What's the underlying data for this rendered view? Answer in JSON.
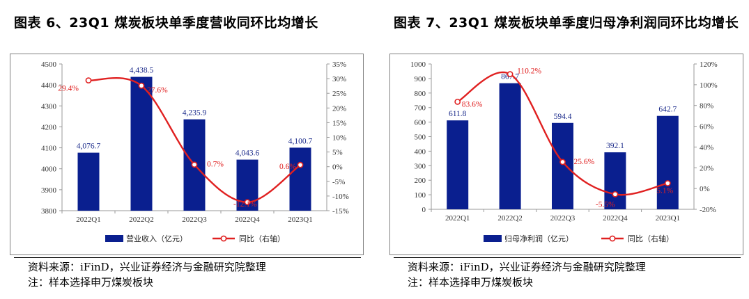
{
  "charts": [
    {
      "title": "图表 6、23Q1 煤炭板块单季度营收同环比均增长",
      "source": "资料来源：iFinD，兴业证券经济与金融研究院整理",
      "note": "注：样本选择申万煤炭板块",
      "legend_bar": "营业收入（亿元）",
      "legend_line": "同比（右轴）"
    },
    {
      "title": "图表 7、23Q1 煤炭板块单季度归母净利润同环比均增长",
      "source": "资料来源：iFinD，兴业证券经济与金融研究院整理",
      "note": "注：样本选择申万煤炭板块",
      "legend_bar": "归母净利润（亿元）",
      "legend_line": "同比（右轴）"
    }
  ],
  "chart_data": [
    {
      "type": "bar",
      "title": "图表 6、23Q1 煤炭板块单季度营收同环比均增长",
      "categories": [
        "2022Q1",
        "2022Q2",
        "2022Q3",
        "2022Q4",
        "2023Q1"
      ],
      "ylim": [
        3800,
        4500
      ],
      "yticks": [
        3800,
        3900,
        4000,
        4100,
        4200,
        4300,
        4400,
        4500
      ],
      "y2lim": [
        -15,
        35
      ],
      "y2ticks": [
        -15,
        -10,
        -5,
        0,
        5,
        10,
        15,
        20,
        25,
        30,
        35
      ],
      "y2suffix": "%",
      "series": [
        {
          "name": "营业收入（亿元）",
          "kind": "bar",
          "axis": "left",
          "values": [
            4076.7,
            4438.5,
            4235.9,
            4043.6,
            4100.7
          ],
          "labels": [
            "4,076.7",
            "4,438.5",
            "4,235.9",
            "4,043.6",
            "4,100.7"
          ],
          "color": "#0a1f8f"
        },
        {
          "name": "同比（右轴）",
          "kind": "line",
          "axis": "right",
          "values": [
            29.4,
            27.6,
            0.7,
            -12.1,
            0.6
          ],
          "labels": [
            "29.4%",
            "27.6%",
            "0.7%",
            "-12.1%",
            "0.6%"
          ],
          "color": "#e02020"
        }
      ],
      "legend": "bottom"
    },
    {
      "type": "bar",
      "title": "图表 7、23Q1 煤炭板块单季度归母净利润同环比均增长",
      "categories": [
        "2022Q1",
        "2022Q2",
        "2022Q3",
        "2022Q4",
        "2023Q1"
      ],
      "ylim": [
        0,
        1000
      ],
      "yticks": [
        0,
        100,
        200,
        300,
        400,
        500,
        600,
        700,
        800,
        900,
        1000
      ],
      "y2lim": [
        -20,
        120
      ],
      "y2ticks": [
        -20,
        0,
        20,
        40,
        60,
        80,
        100,
        120
      ],
      "y2suffix": "%",
      "series": [
        {
          "name": "归母净利润（亿元）",
          "kind": "bar",
          "axis": "left",
          "values": [
            611.8,
            867.7,
            594.4,
            392.1,
            642.7
          ],
          "labels": [
            "611.8",
            "867.7",
            "594.4",
            "392.1",
            "642.7"
          ],
          "color": "#0a1f8f"
        },
        {
          "name": "同比（右轴）",
          "kind": "line",
          "axis": "right",
          "values": [
            83.6,
            110.2,
            25.6,
            -5.5,
            5.1
          ],
          "labels": [
            "83.6%",
            "110.2%",
            "25.6%",
            "-5.5%",
            "5.1%"
          ],
          "color": "#e02020"
        }
      ],
      "legend": "bottom"
    }
  ]
}
